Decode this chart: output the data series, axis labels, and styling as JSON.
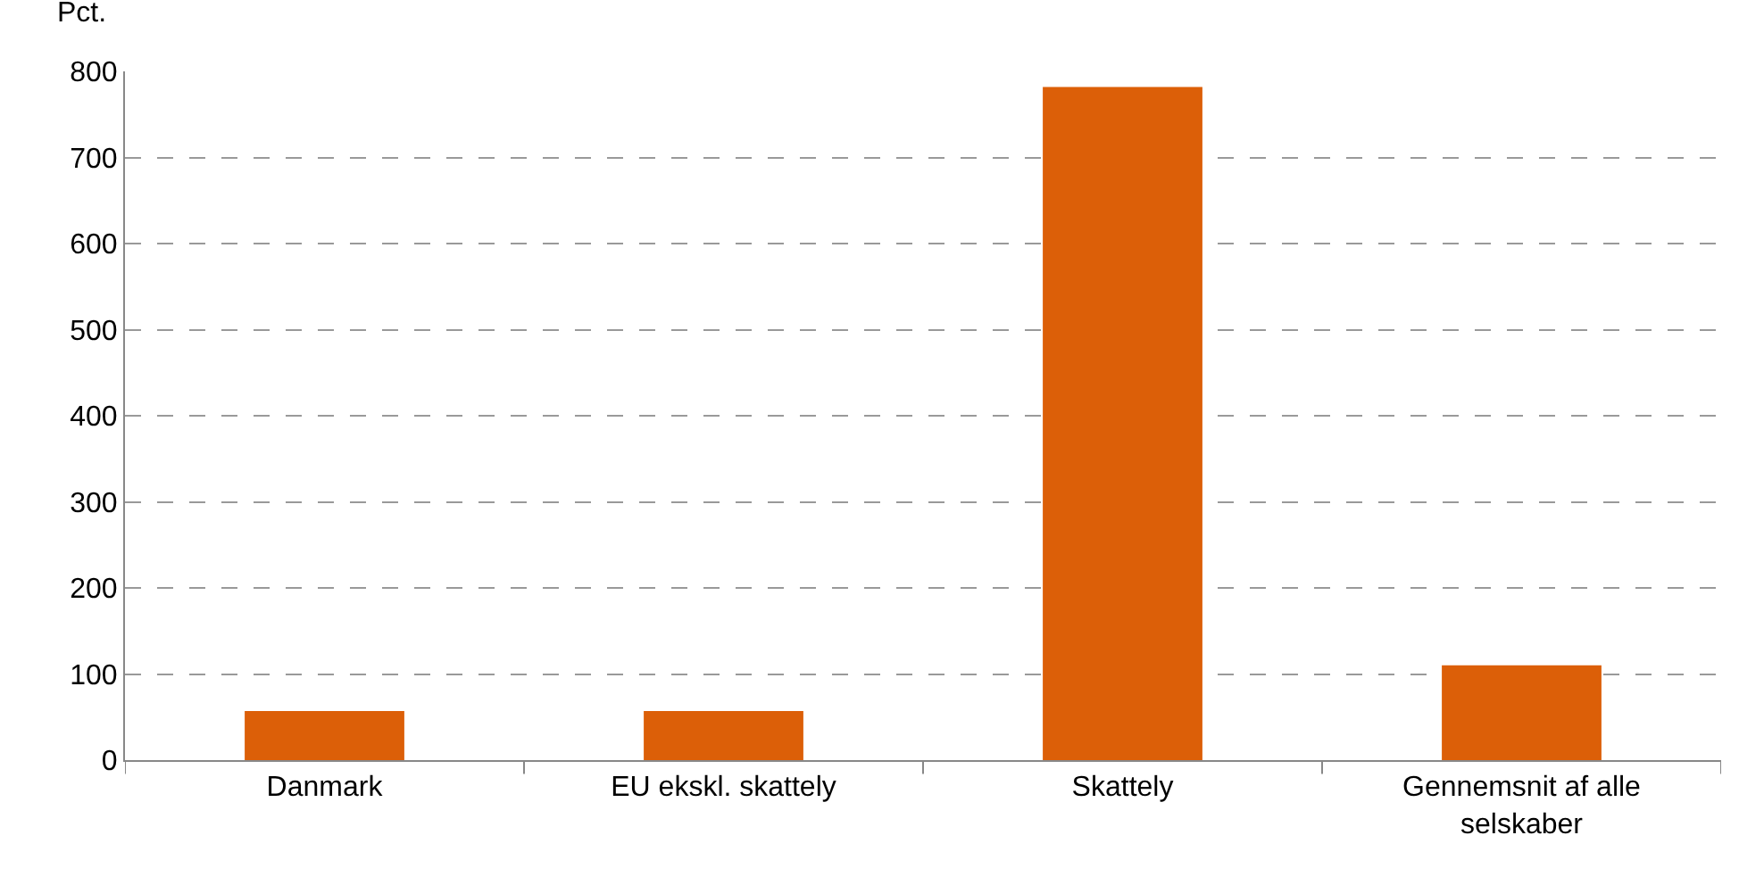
{
  "chart_data": {
    "type": "bar",
    "ylabel": "Pct.",
    "categories": [
      "Danmark",
      "EU ekskl. skattely",
      "Skattely",
      "Gennemsnit af alle selskaber"
    ],
    "values": [
      57,
      57,
      782,
      110
    ],
    "color": "#dc5f08",
    "ylim": [
      0,
      800
    ],
    "yticks": [
      0,
      100,
      200,
      300,
      400,
      500,
      600,
      700,
      800
    ],
    "grid": "y"
  }
}
